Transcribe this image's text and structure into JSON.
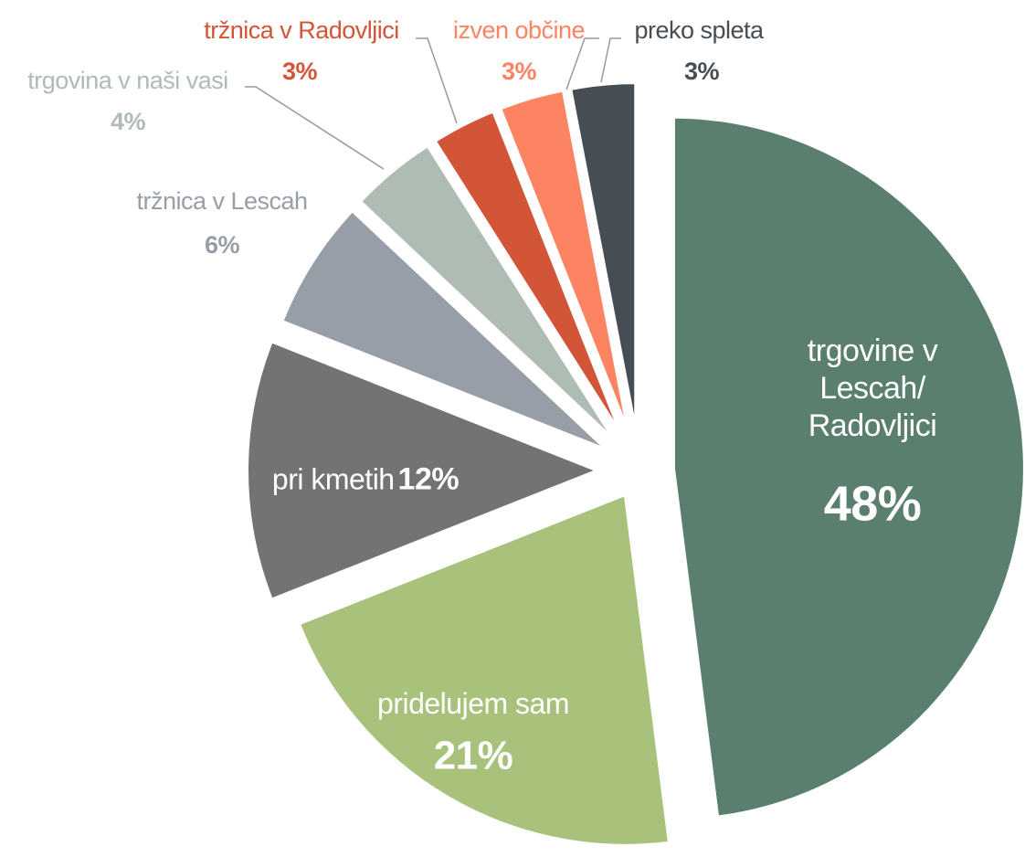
{
  "chart_data": {
    "type": "pie",
    "categories": [
      "trgovine v Lescah/ Radovljici",
      "pridelujem sam",
      "pri kmetih",
      "tržnica v Lescah",
      "trgovina v naši vasi",
      "tržnica v Radovljici",
      "izven občine",
      "preko spleta"
    ],
    "values": [
      48,
      21,
      12,
      6,
      4,
      3,
      3,
      3
    ],
    "value_labels": [
      "48%",
      "21%",
      "12%",
      "6%",
      "4%",
      "3%",
      "3%",
      "3%"
    ],
    "colors": [
      "#5a7f6e",
      "#a9c27b",
      "#737373",
      "#979ea8",
      "#aebcb4",
      "#d35537",
      "#fd8462",
      "#474d54"
    ]
  }
}
